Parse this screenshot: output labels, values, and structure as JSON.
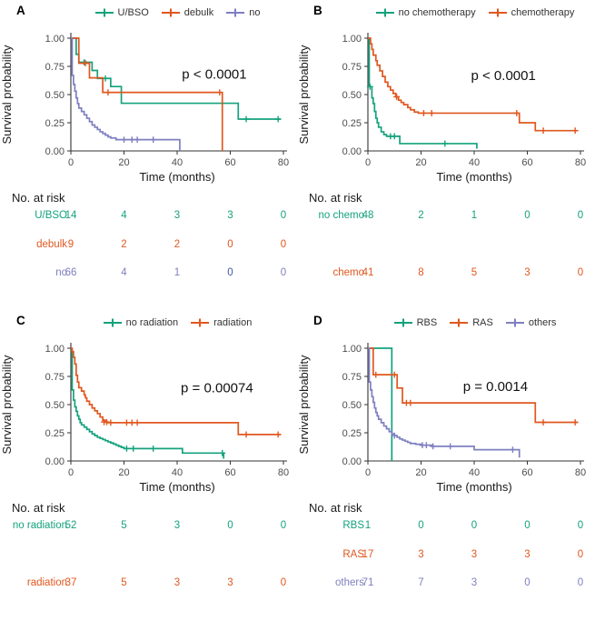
{
  "figure": {
    "background": "#ffffff"
  },
  "palette": {
    "green": "#14A27D",
    "orange": "#E0571F",
    "purple": "#7E7FC0",
    "dark_blue_zero": "#3E58A8"
  },
  "axes": {
    "x_label": "Time (months)",
    "y_label": "Survival probability",
    "x_ticks": [
      0,
      20,
      40,
      60,
      80
    ],
    "y_tick_labels": [
      "1.00",
      "0.75",
      "0.50",
      "0.25",
      "0.00"
    ],
    "xlim": [
      0,
      80
    ],
    "ylim": [
      0,
      1
    ]
  },
  "risk_title": "No. at risk",
  "chart_data": [
    {
      "type": "line",
      "subtype": "kaplan-meier",
      "label": "A",
      "p_value": {
        "text": "p < 0.0001",
        "x": 54,
        "y": 0.64
      },
      "series": [
        {
          "name": "U/BSO",
          "color": "#14A27D",
          "steps": [
            [
              0,
              1
            ],
            [
              2,
              0.857
            ],
            [
              3,
              0.786
            ],
            [
              8,
              0.714
            ],
            [
              10,
              0.643
            ],
            [
              15,
              0.571
            ],
            [
              19,
              0.423
            ],
            [
              63,
              0.282
            ],
            [
              79,
              0.282
            ]
          ],
          "censors": [
            [
              5,
              0.786
            ],
            [
              13,
              0.643
            ],
            [
              66,
              0.282
            ],
            [
              78,
              0.282
            ]
          ]
        },
        {
          "name": "debulk",
          "color": "#E0571F",
          "steps": [
            [
              0,
              1
            ],
            [
              3,
              0.778
            ],
            [
              7,
              0.648
            ],
            [
              12,
              0.519
            ],
            [
              57,
              0.519
            ],
            [
              57,
              0
            ]
          ],
          "censors": [
            [
              5.5,
              0.778
            ],
            [
              14,
              0.519
            ],
            [
              56,
              0.519
            ]
          ]
        },
        {
          "name": "no",
          "color": "#7E7FC0",
          "steps": [
            [
              0,
              1
            ],
            [
              0.5,
              0.67
            ],
            [
              1,
              0.59
            ],
            [
              1.5,
              0.53
            ],
            [
              2,
              0.47
            ],
            [
              2.5,
              0.42
            ],
            [
              3,
              0.38
            ],
            [
              4,
              0.35
            ],
            [
              5,
              0.32
            ],
            [
              6,
              0.29
            ],
            [
              7,
              0.26
            ],
            [
              8,
              0.23
            ],
            [
              9,
              0.21
            ],
            [
              10,
              0.19
            ],
            [
              11,
              0.17
            ],
            [
              12,
              0.155
            ],
            [
              13,
              0.14
            ],
            [
              14,
              0.125
            ],
            [
              15,
              0.115
            ],
            [
              17,
              0.1
            ],
            [
              41,
              0.1
            ],
            [
              41,
              0
            ]
          ],
          "censors": [
            [
              20,
              0.1
            ],
            [
              23,
              0.1
            ],
            [
              25,
              0.1
            ],
            [
              31,
              0.1
            ]
          ]
        }
      ],
      "risk_table": {
        "rows": [
          {
            "label": "U/BSO",
            "color": "#14A27D",
            "values": [
              "14",
              "4",
              "3",
              "3",
              "0"
            ]
          },
          {
            "label": "debulk",
            "color": "#E0571F",
            "values": [
              "9",
              "2",
              "2",
              "0",
              "0"
            ]
          },
          {
            "label": "no",
            "color": "#7E7FC0",
            "values": [
              "66",
              "4",
              "1",
              "0",
              "0"
            ],
            "value_colors": {
              "3": "#3E58A8"
            }
          }
        ]
      }
    },
    {
      "type": "line",
      "subtype": "kaplan-meier",
      "label": "B",
      "p_value": {
        "text": "p < 0.0001",
        "x": 51,
        "y": 0.63
      },
      "series": [
        {
          "name": "no chemotherapy",
          "color": "#14A27D",
          "steps": [
            [
              0,
              1
            ],
            [
              0.5,
              0.57
            ],
            [
              1.5,
              0.47
            ],
            [
              2,
              0.42
            ],
            [
              2.5,
              0.35
            ],
            [
              3,
              0.29
            ],
            [
              3.5,
              0.25
            ],
            [
              4,
              0.21
            ],
            [
              5,
              0.17
            ],
            [
              6,
              0.145
            ],
            [
              7,
              0.13
            ],
            [
              12,
              0.065
            ],
            [
              41,
              0.065
            ],
            [
              41,
              0.02
            ]
          ],
          "censors": [
            [
              0.8,
              0.57
            ],
            [
              8.5,
              0.13
            ],
            [
              10,
              0.13
            ],
            [
              29,
              0.065
            ]
          ]
        },
        {
          "name": "chemotherapy",
          "color": "#E0571F",
          "steps": [
            [
              0,
              1
            ],
            [
              1,
              0.95
            ],
            [
              1.5,
              0.9
            ],
            [
              2,
              0.85
            ],
            [
              3,
              0.8
            ],
            [
              3.5,
              0.76
            ],
            [
              4.5,
              0.71
            ],
            [
              5.5,
              0.66
            ],
            [
              6.5,
              0.61
            ],
            [
              7.5,
              0.57
            ],
            [
              8.5,
              0.54
            ],
            [
              9.5,
              0.51
            ],
            [
              10.5,
              0.48
            ],
            [
              11.5,
              0.45
            ],
            [
              12.5,
              0.43
            ],
            [
              13.5,
              0.41
            ],
            [
              15,
              0.385
            ],
            [
              16,
              0.365
            ],
            [
              17.5,
              0.345
            ],
            [
              19,
              0.335
            ],
            [
              57,
              0.335
            ],
            [
              57,
              0.25
            ],
            [
              63,
              0.25
            ],
            [
              63,
              0.18
            ],
            [
              79,
              0.18
            ]
          ],
          "censors": [
            [
              10.8,
              0.48
            ],
            [
              21,
              0.335
            ],
            [
              24,
              0.335
            ],
            [
              56,
              0.335
            ],
            [
              66,
              0.18
            ],
            [
              78,
              0.18
            ]
          ]
        }
      ],
      "risk_table": {
        "rows": [
          {
            "label": "no chemo",
            "color": "#14A27D",
            "values": [
              "48",
              "2",
              "1",
              "0",
              "0"
            ]
          },
          {
            "label": "chemo",
            "color": "#E0571F",
            "values": [
              "41",
              "8",
              "5",
              "3",
              "0"
            ]
          }
        ]
      }
    },
    {
      "type": "line",
      "subtype": "kaplan-meier",
      "label": "C",
      "p_value": {
        "text": "p = 0.00074",
        "x": 55,
        "y": 0.61
      },
      "series": [
        {
          "name": "no radiation",
          "color": "#14A27D",
          "steps": [
            [
              0,
              0.98
            ],
            [
              0.5,
              0.63
            ],
            [
              1,
              0.54
            ],
            [
              1.5,
              0.48
            ],
            [
              2,
              0.44
            ],
            [
              2.5,
              0.4
            ],
            [
              3,
              0.37
            ],
            [
              3.5,
              0.34
            ],
            [
              4,
              0.32
            ],
            [
              5,
              0.3
            ],
            [
              6,
              0.28
            ],
            [
              7,
              0.26
            ],
            [
              8,
              0.24
            ],
            [
              9,
              0.225
            ],
            [
              10,
              0.21
            ],
            [
              11,
              0.2
            ],
            [
              12,
              0.19
            ],
            [
              13,
              0.18
            ],
            [
              14,
              0.17
            ],
            [
              15,
              0.16
            ],
            [
              16,
              0.15
            ],
            [
              17,
              0.14
            ],
            [
              18,
              0.13
            ],
            [
              19,
              0.12
            ],
            [
              20,
              0.11
            ],
            [
              42,
              0.07
            ],
            [
              57.5,
              0.07
            ],
            [
              57.5,
              0.02
            ]
          ],
          "censors": [
            [
              21,
              0.11
            ],
            [
              23.5,
              0.11
            ],
            [
              31,
              0.11
            ],
            [
              57,
              0.07
            ]
          ]
        },
        {
          "name": "radiation",
          "color": "#E0571F",
          "steps": [
            [
              0,
              1
            ],
            [
              0.5,
              0.97
            ],
            [
              1,
              0.92
            ],
            [
              1.5,
              0.86
            ],
            [
              2,
              0.76
            ],
            [
              2.5,
              0.7
            ],
            [
              3,
              0.65
            ],
            [
              4,
              0.62
            ],
            [
              5,
              0.585
            ],
            [
              5.5,
              0.56
            ],
            [
              6,
              0.53
            ],
            [
              7,
              0.5
            ],
            [
              8,
              0.47
            ],
            [
              9,
              0.445
            ],
            [
              10,
              0.42
            ],
            [
              11,
              0.39
            ],
            [
              12,
              0.36
            ],
            [
              13,
              0.345
            ],
            [
              14,
              0.34
            ],
            [
              63,
              0.34
            ],
            [
              63,
              0.235
            ],
            [
              79,
              0.235
            ]
          ],
          "censors": [
            [
              12.5,
              0.345
            ],
            [
              13.5,
              0.345
            ],
            [
              15,
              0.34
            ],
            [
              21,
              0.34
            ],
            [
              23,
              0.34
            ],
            [
              25,
              0.34
            ],
            [
              66,
              0.235
            ],
            [
              78,
              0.235
            ]
          ]
        }
      ],
      "risk_table": {
        "rows": [
          {
            "label": "no radiation",
            "color": "#14A27D",
            "values": [
              "52",
              "5",
              "3",
              "0",
              "0"
            ]
          },
          {
            "label": "radiation",
            "color": "#E0571F",
            "values": [
              "37",
              "5",
              "3",
              "3",
              "0"
            ]
          }
        ]
      }
    },
    {
      "type": "line",
      "subtype": "kaplan-meier",
      "label": "D",
      "p_value": {
        "text": "p = 0.0014",
        "x": 48,
        "y": 0.62
      },
      "series": [
        {
          "name": "RBS",
          "color": "#14A27D",
          "steps": [
            [
              0,
              1
            ],
            [
              9,
              1
            ],
            [
              9,
              0
            ]
          ],
          "censors": []
        },
        {
          "name": "RAS",
          "color": "#E0571F",
          "steps": [
            [
              0,
              1
            ],
            [
              2,
              0.765
            ],
            [
              11,
              0.647
            ],
            [
              13,
              0.515
            ],
            [
              63,
              0.343
            ],
            [
              79,
              0.343
            ]
          ],
          "censors": [
            [
              3,
              0.765
            ],
            [
              10,
              0.765
            ],
            [
              14.5,
              0.515
            ],
            [
              16,
              0.515
            ],
            [
              66,
              0.343
            ],
            [
              78,
              0.343
            ]
          ]
        },
        {
          "name": "others",
          "color": "#7E7FC0",
          "steps": [
            [
              0,
              1
            ],
            [
              0.5,
              0.7
            ],
            [
              1,
              0.63
            ],
            [
              1.5,
              0.57
            ],
            [
              2,
              0.52
            ],
            [
              2.5,
              0.47
            ],
            [
              3,
              0.43
            ],
            [
              3.5,
              0.4
            ],
            [
              4,
              0.37
            ],
            [
              5,
              0.34
            ],
            [
              6,
              0.31
            ],
            [
              7,
              0.285
            ],
            [
              8,
              0.26
            ],
            [
              9,
              0.24
            ],
            [
              10,
              0.225
            ],
            [
              11,
              0.21
            ],
            [
              12,
              0.195
            ],
            [
              13,
              0.185
            ],
            [
              14,
              0.175
            ],
            [
              15,
              0.165
            ],
            [
              16,
              0.155
            ],
            [
              18,
              0.148
            ],
            [
              20,
              0.14
            ],
            [
              24,
              0.13
            ],
            [
              40,
              0.1
            ],
            [
              57,
              0.1
            ],
            [
              57,
              0.03
            ]
          ],
          "censors": [
            [
              10,
              0.225
            ],
            [
              20.5,
              0.14
            ],
            [
              22,
              0.14
            ],
            [
              24.5,
              0.13
            ],
            [
              31,
              0.13
            ],
            [
              54.5,
              0.1
            ]
          ]
        }
      ],
      "risk_table": {
        "rows": [
          {
            "label": "RBS",
            "color": "#14A27D",
            "values": [
              "1",
              "0",
              "0",
              "0",
              "0"
            ]
          },
          {
            "label": "RAS",
            "color": "#E0571F",
            "values": [
              "17",
              "3",
              "3",
              "3",
              "0"
            ]
          },
          {
            "label": "others",
            "color": "#7E7FC0",
            "values": [
              "71",
              "7",
              "3",
              "0",
              "0"
            ]
          }
        ]
      }
    }
  ]
}
